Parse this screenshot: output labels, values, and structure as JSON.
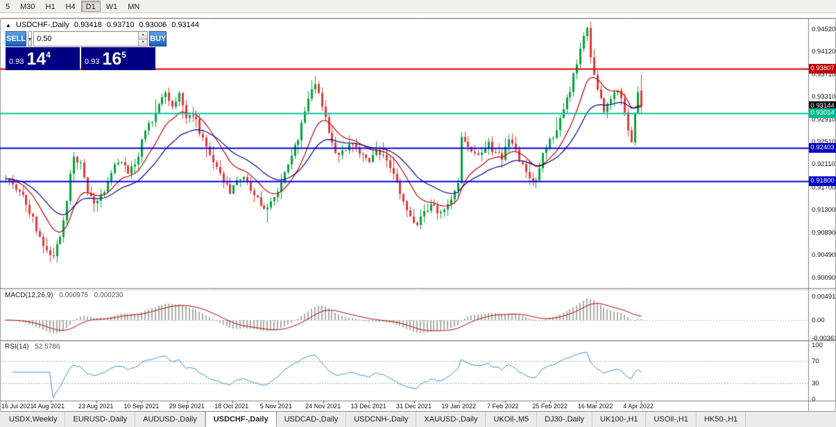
{
  "icons": {
    "collapse": "▲",
    "chevron_down": "▾",
    "spin_up": "▴",
    "spin_down": "▾"
  },
  "toolbar": {
    "timeframes": [
      {
        "label": "5",
        "active": false
      },
      {
        "label": "M30",
        "active": false
      },
      {
        "label": "H1",
        "active": false
      },
      {
        "label": "H4",
        "active": false
      },
      {
        "label": "D1",
        "active": true
      },
      {
        "label": "W1",
        "active": false
      },
      {
        "label": "MN",
        "active": false
      }
    ]
  },
  "header": {
    "symbol": "USDCHF-,Daily",
    "open": "0.93418",
    "high": "0.93710",
    "low": "0.93006",
    "close": "0.93144"
  },
  "trade": {
    "sell_label": "SELL",
    "buy_label": "BUY",
    "volume": "0.50",
    "sell_price": {
      "small": "0.93",
      "big": "14",
      "sup": "4"
    },
    "buy_price": {
      "small": "0.93",
      "big": "16",
      "sup": "5"
    }
  },
  "price_axis": [
    "0.94520",
    "0.94120",
    "0.93710",
    "0.93310",
    "0.92910",
    "0.92510",
    "0.92110",
    "0.91700",
    "0.91300",
    "0.90890",
    "0.90490",
    "0.90090"
  ],
  "hlines": [
    {
      "value": 0.93807,
      "label": "0.93807",
      "color": "#D40000",
      "tag_bg": "#C00000",
      "style": "line"
    },
    {
      "value": 0.93144,
      "label": "0.93144",
      "color": "#000000",
      "tag_bg": "#000000",
      "style": "tag"
    },
    {
      "value": 0.93014,
      "label": "0.93014",
      "color": "#00C39A",
      "tag_bg": "#00B894",
      "style": "line"
    },
    {
      "value": 0.92403,
      "label": "0.92403",
      "color": "#0000D8",
      "tag_bg": "#0000C0",
      "style": "line"
    },
    {
      "value": 0.918,
      "label": "0.91800",
      "color": "#0000D8",
      "tag_bg": "#0000C0",
      "style": "line"
    }
  ],
  "macd": {
    "label": "MACD(12,26,9)",
    "value_main": "0.000975",
    "value_signal": "0.000230",
    "axis": [
      "0.004913",
      "0.00",
      "-0.00361"
    ],
    "colors": {
      "hist": "#ACACAC",
      "signal": "#C00000"
    }
  },
  "rsi": {
    "label": "RSI(14)",
    "value": "52.5786",
    "color": "#3E8FD6",
    "levels": [
      70,
      30
    ],
    "axis": [
      {
        "label": "100",
        "v": 100
      },
      {
        "label": "70",
        "v": 70
      },
      {
        "label": "30",
        "v": 30
      },
      {
        "label": "0",
        "v": 0
      }
    ]
  },
  "dates": [
    "16 Jul 2021",
    "4 Aug 2021",
    "23 Aug 2021",
    "10 Sep 2021",
    "29 Sep 2021",
    "18 Oct 2021",
    "5 Nov 2021",
    "24 Nov 2021",
    "13 Dec 2021",
    "31 Dec 2021",
    "19 Jan 2022",
    "7 Feb 2022",
    "25 Feb 2022",
    "16 Mar 2022",
    "4 Apr 2022"
  ],
  "tabs": [
    {
      "label": "USDX,Weekly",
      "active": false
    },
    {
      "label": "EURUSD-,Daily",
      "active": false
    },
    {
      "label": "AUDUSD-,Daily",
      "active": false
    },
    {
      "label": "USDCHF-,Daily",
      "active": true
    },
    {
      "label": "USDCAD-,Daily",
      "active": false
    },
    {
      "label": "USDCNH-,Daily",
      "active": false
    },
    {
      "label": "XAUUSD-,Daily",
      "active": false
    },
    {
      "label": "UKOil-,M5",
      "active": false
    },
    {
      "label": "DJ30-,Daily",
      "active": false
    },
    {
      "label": "UK100-,H1",
      "active": false
    },
    {
      "label": "USOil-,H1",
      "active": false
    },
    {
      "label": "HK50-,H1",
      "active": false
    }
  ],
  "chart_data": {
    "type": "candlestick",
    "symbol": "USDCHF-",
    "timeframe": "Daily",
    "last_ohlc": {
      "open": 0.93418,
      "high": 0.9371,
      "low": 0.93006,
      "close": 0.93144
    },
    "y_range": {
      "min": 0.899,
      "max": 0.947
    },
    "candle_count": 188,
    "seed": 11,
    "colors": {
      "up": "#00A43B",
      "down": "#E03A3A"
    },
    "moving_averages": [
      {
        "period": 12,
        "color": "#C00000"
      },
      {
        "period": 26,
        "color": "#00008B"
      }
    ],
    "close_waypoints": [
      [
        0,
        0.9185
      ],
      [
        3,
        0.917
      ],
      [
        6,
        0.9142
      ],
      [
        9,
        0.9098
      ],
      [
        12,
        0.9058
      ],
      [
        14,
        0.9045
      ],
      [
        16,
        0.9082
      ],
      [
        18,
        0.9145
      ],
      [
        20,
        0.923
      ],
      [
        22,
        0.9208
      ],
      [
        24,
        0.9162
      ],
      [
        26,
        0.9136
      ],
      [
        28,
        0.9156
      ],
      [
        30,
        0.918
      ],
      [
        33,
        0.9216
      ],
      [
        36,
        0.9198
      ],
      [
        38,
        0.9212
      ],
      [
        40,
        0.925
      ],
      [
        43,
        0.9292
      ],
      [
        45,
        0.932
      ],
      [
        47,
        0.9338
      ],
      [
        49,
        0.931
      ],
      [
        51,
        0.9332
      ],
      [
        53,
        0.9295
      ],
      [
        55,
        0.9302
      ],
      [
        57,
        0.9268
      ],
      [
        60,
        0.9228
      ],
      [
        63,
        0.9196
      ],
      [
        66,
        0.9162
      ],
      [
        68,
        0.9178
      ],
      [
        70,
        0.919
      ],
      [
        72,
        0.9162
      ],
      [
        74,
        0.915
      ],
      [
        76,
        0.9132
      ],
      [
        78,
        0.9146
      ],
      [
        80,
        0.9165
      ],
      [
        82,
        0.92
      ],
      [
        84,
        0.9228
      ],
      [
        86,
        0.9258
      ],
      [
        88,
        0.9302
      ],
      [
        90,
        0.934
      ],
      [
        91,
        0.9352
      ],
      [
        93,
        0.9312
      ],
      [
        95,
        0.9268
      ],
      [
        97,
        0.9238
      ],
      [
        99,
        0.923
      ],
      [
        101,
        0.9248
      ],
      [
        103,
        0.9238
      ],
      [
        105,
        0.9228
      ],
      [
        107,
        0.922
      ],
      [
        109,
        0.9238
      ],
      [
        111,
        0.9228
      ],
      [
        113,
        0.9205
      ],
      [
        115,
        0.9178
      ],
      [
        117,
        0.914
      ],
      [
        119,
        0.9112
      ],
      [
        121,
        0.9102
      ],
      [
        123,
        0.9126
      ],
      [
        125,
        0.9142
      ],
      [
        127,
        0.9128
      ],
      [
        129,
        0.9125
      ],
      [
        131,
        0.9155
      ],
      [
        133,
        0.918
      ],
      [
        134,
        0.9262
      ],
      [
        136,
        0.9235
      ],
      [
        138,
        0.9225
      ],
      [
        140,
        0.923
      ],
      [
        142,
        0.9245
      ],
      [
        144,
        0.9232
      ],
      [
        146,
        0.9222
      ],
      [
        148,
        0.925
      ],
      [
        150,
        0.9232
      ],
      [
        152,
        0.9212
      ],
      [
        154,
        0.9192
      ],
      [
        156,
        0.918
      ],
      [
        158,
        0.9228
      ],
      [
        160,
        0.925
      ],
      [
        162,
        0.9272
      ],
      [
        164,
        0.9308
      ],
      [
        166,
        0.9342
      ],
      [
        168,
        0.9394
      ],
      [
        170,
        0.944
      ],
      [
        171,
        0.945
      ],
      [
        172,
        0.9402
      ],
      [
        174,
        0.934
      ],
      [
        176,
        0.9306
      ],
      [
        178,
        0.933
      ],
      [
        180,
        0.9348
      ],
      [
        182,
        0.9304
      ],
      [
        184,
        0.9252
      ],
      [
        186,
        0.934
      ],
      [
        187,
        0.93418
      ]
    ]
  }
}
